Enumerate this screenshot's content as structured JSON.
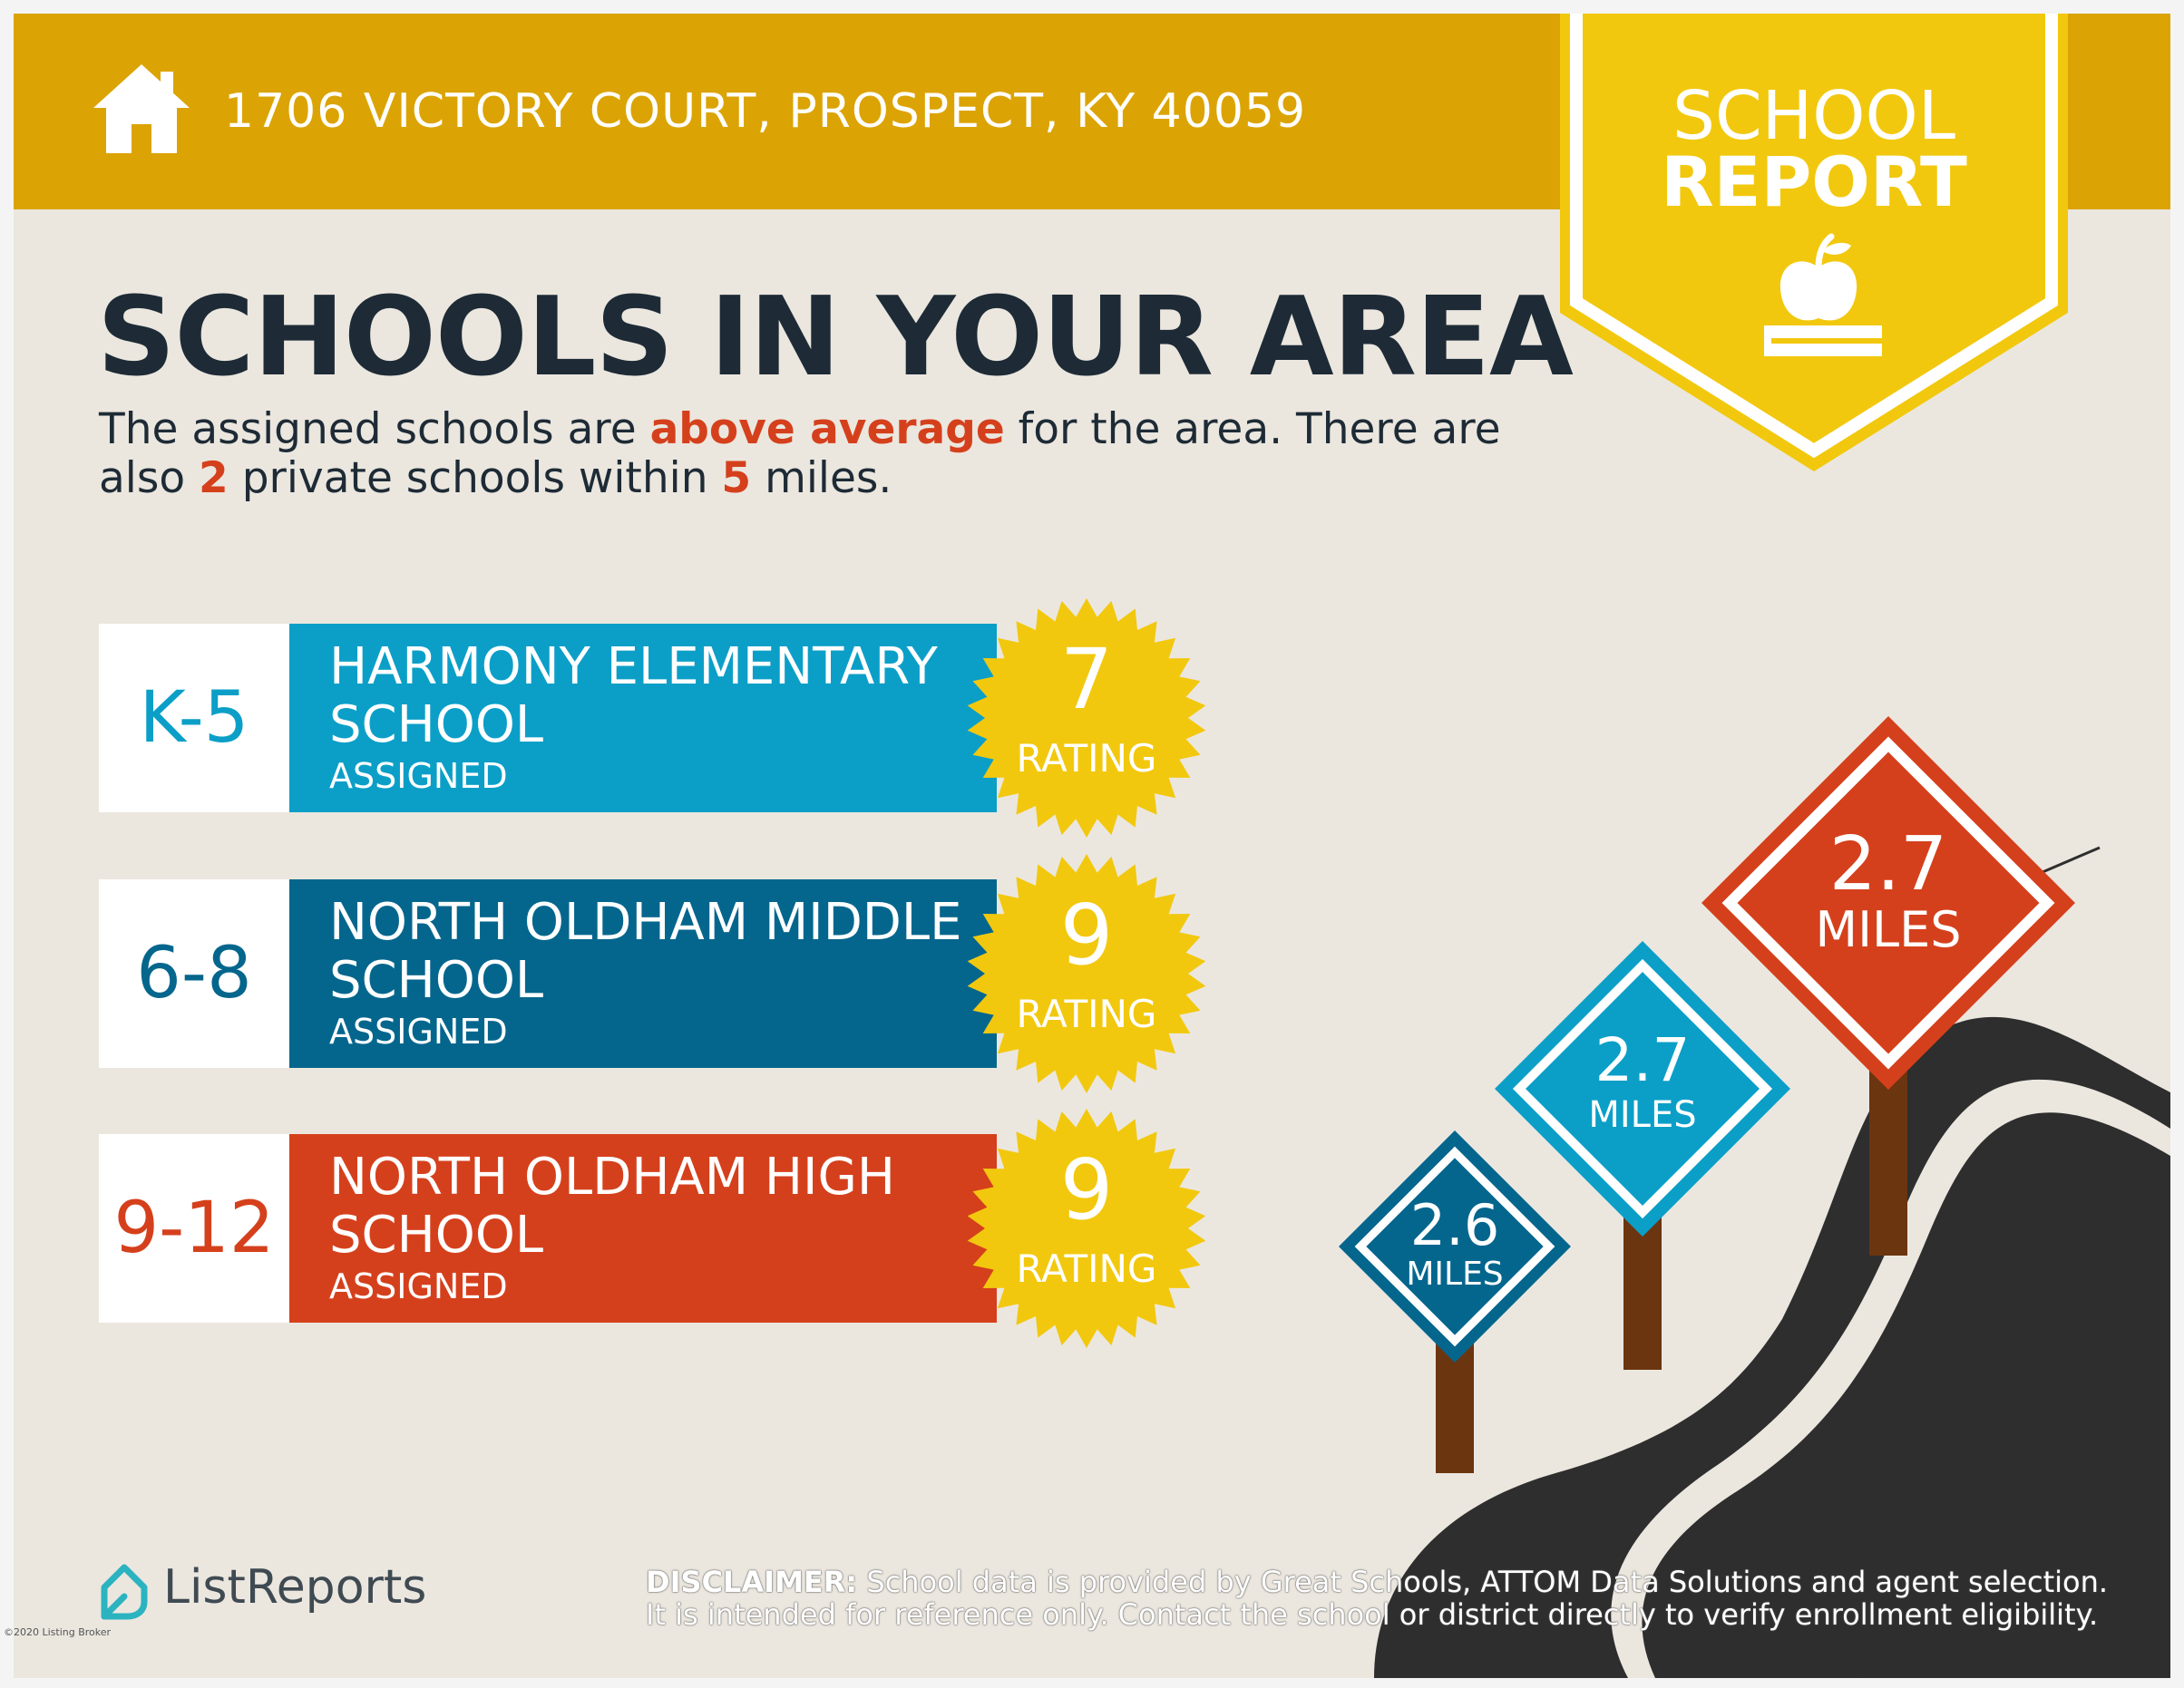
{
  "header": {
    "address": "1706 VICTORY COURT, PROSPECT, KY 40059",
    "icon": "home-icon"
  },
  "badge": {
    "line1": "SCHOOL",
    "line2": "REPORT",
    "icon": "apple-on-book-icon"
  },
  "headline": "SCHOOLS IN YOUR AREA",
  "summary": {
    "part1": "The assigned schools are ",
    "highlight1": "above average",
    "part2": " for the area. There are also ",
    "highlight2": "2",
    "part3": " private schools within ",
    "highlight3": "5",
    "part4": " miles."
  },
  "schools": [
    {
      "grades": "K-5",
      "name": "HARMONY ELEMENTARY SCHOOL",
      "status": "ASSIGNED",
      "rating": "7",
      "rating_label": "RATING",
      "color": "#0b9fc8",
      "grade_color": "#0b9fc8"
    },
    {
      "grades": "6-8",
      "name": "NORTH OLDHAM MIDDLE SCHOOL",
      "status": "ASSIGNED",
      "rating": "9",
      "rating_label": "RATING",
      "color": "#05668d",
      "grade_color": "#05668d"
    },
    {
      "grades": "9-12",
      "name": "NORTH OLDHAM HIGH SCHOOL",
      "status": "ASSIGNED",
      "rating": "9",
      "rating_label": "RATING",
      "color": "#d5401c",
      "grade_color": "#d5401c"
    }
  ],
  "distance_signs": [
    {
      "value": "2.6",
      "unit": "MILES",
      "color": "#05668d"
    },
    {
      "value": "2.7",
      "unit": "MILES",
      "color": "#0b9fc8"
    },
    {
      "value": "2.7",
      "unit": "MILES",
      "color": "#d5401c"
    }
  ],
  "footer": {
    "logo_text": "ListReports",
    "logo_icon": "listreports-logo-icon",
    "disclaimer_label": "DISCLAIMER:",
    "disclaimer_text": " School data is provided by Great Schools, ATTOM Data Solutions and agent selection. It is intended for reference only. Contact the school or district directly to verify enrollment eligibility.",
    "watermark": "©2020 Listing Broker"
  },
  "colors": {
    "gold": "#dba404",
    "yellow": "#f2c80e",
    "navy": "#1e2b36",
    "accent_red": "#d5401c",
    "background": "#ebe7df"
  }
}
